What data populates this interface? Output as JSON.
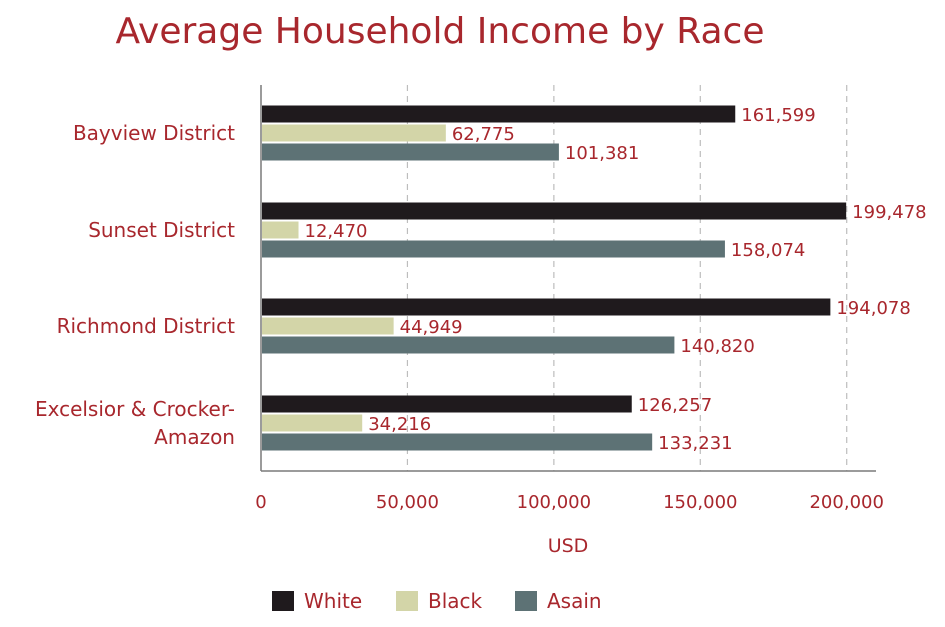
{
  "chart_data": {
    "type": "bar",
    "orientation": "horizontal",
    "title": "Average Household Income by Race",
    "xlabel": "USD",
    "ylabel": "",
    "xlim": [
      0,
      210000
    ],
    "xticks": [
      0,
      50000,
      100000,
      150000,
      200000
    ],
    "xtick_labels": [
      "0",
      "50,000",
      "100,000",
      "150,000",
      "200,000"
    ],
    "grid": true,
    "legend_position": "bottom",
    "categories": [
      [
        "Bayview District"
      ],
      [
        "Sunset District"
      ],
      [
        "Richmond District"
      ],
      [
        "Excelsior & Crocker-",
        "Amazon"
      ]
    ],
    "series": [
      {
        "name": "White",
        "color": "#1f1a1d",
        "values": [
          161599,
          199478,
          194078,
          126257
        ],
        "labels": [
          "161,599",
          "199,478",
          "194,078",
          "126,257"
        ]
      },
      {
        "name": "Black",
        "color": "#d3d5a8",
        "values": [
          62775,
          12470,
          44949,
          34216
        ],
        "labels": [
          "62,775",
          "12,470",
          "44,949",
          "34,216"
        ]
      },
      {
        "name": "Asain",
        "color": "#5d7275",
        "values": [
          101381,
          158074,
          140820,
          133231
        ],
        "labels": [
          "101,381",
          "158,074",
          "140,820",
          "133,231"
        ]
      }
    ]
  }
}
